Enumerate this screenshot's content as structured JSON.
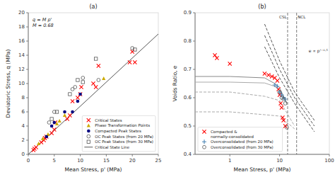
{
  "chart_data": [
    {
      "type": "scatter",
      "title": "(a)",
      "xlabel": "Mean Stress, p' (MPa)",
      "ylabel": "Deviatoric Stress, q (MPa)",
      "xlim": [
        0,
        25
      ],
      "ylim": [
        0,
        20
      ],
      "xticks": [
        0,
        5,
        10,
        15,
        20,
        25
      ],
      "yticks": [
        0,
        2,
        4,
        6,
        8,
        10,
        12,
        14,
        16,
        18,
        20
      ],
      "grid": false,
      "legend": "lower right",
      "annotation": "q = M p'\nM = 0.68",
      "series": [
        {
          "name": "Critical States",
          "type": "scatter",
          "color": "red",
          "marker": "x",
          "x": [
            1.0,
            1.2,
            1.5,
            2.5,
            3.0,
            3.2,
            3.5,
            4.5,
            5.0,
            5.2,
            7.5,
            8.0,
            8.5,
            9.5,
            10.0,
            10.2,
            12.5,
            13.0,
            13.5,
            19.5,
            20.0,
            20.5
          ],
          "values": [
            0.6,
            0.8,
            1.0,
            1.7,
            2.0,
            2.3,
            2.5,
            3.0,
            3.5,
            4.5,
            5.0,
            5.5,
            7.5,
            8.0,
            8.5,
            9.5,
            10.0,
            9.5,
            12.5,
            13.0,
            14.5,
            13.0
          ]
        },
        {
          "name": "Phase Transformation Points",
          "type": "scatter",
          "color": "#ccaa00",
          "marker": "triangle",
          "x": [
            2.0,
            2.8,
            3.8,
            5.5,
            6.0,
            7.0,
            14.5
          ],
          "values": [
            1.5,
            2.2,
            2.8,
            4.3,
            4.7,
            5.5,
            10.7
          ]
        },
        {
          "name": "Compacted Peak States",
          "type": "scatter",
          "color": "navy",
          "marker": "circle",
          "x": [
            3.5,
            4.5,
            5.0,
            7.0,
            8.5,
            9.5,
            10.0
          ],
          "values": [
            2.5,
            4.0,
            4.5,
            6.0,
            6.0,
            7.5,
            8.5
          ]
        },
        {
          "name": "OC Peak States (from 20 MPa)",
          "type": "scatter",
          "color": "#555555",
          "marker": "open-circle",
          "x": [
            4.0,
            5.0,
            8.5,
            9.0,
            10.5,
            13.5,
            20.0
          ],
          "values": [
            4.5,
            6.0,
            9.2,
            9.5,
            10.8,
            10.5,
            15.0
          ]
        },
        {
          "name": "OC Peak States (from 30 MPa)",
          "type": "scatter",
          "color": "#555555",
          "marker": "open-square",
          "x": [
            4.5,
            5.5,
            8.0,
            9.5,
            10.5,
            13.0,
            20.5
          ],
          "values": [
            5.0,
            6.0,
            8.5,
            10.5,
            10.2,
            13.5,
            14.8
          ]
        },
        {
          "name": "Critical State Line",
          "type": "line",
          "color": "#555555",
          "line_style": "solid",
          "x": [
            0,
            25
          ],
          "values": [
            0,
            17
          ]
        }
      ]
    },
    {
      "type": "scatter",
      "title": "(b)",
      "xlabel": "Mean Stress, p' (MPa)",
      "ylabel": "Voids Ratio, e",
      "log": "x",
      "xlim": [
        0.2,
        100
      ],
      "ylim": [
        0.4,
        0.9
      ],
      "xticks": [
        1,
        10,
        100
      ],
      "yticks": [
        0.4,
        0.5,
        0.6,
        0.7,
        0.8,
        0.9
      ],
      "grid": false,
      "legend": "lower left",
      "annotation": "e ∝ p'⁻⁰·⁵",
      "vlines": [
        {
          "x": 14.5,
          "text": "CSL"
        },
        {
          "x": 22.0,
          "text": "NCL"
        }
      ],
      "series": [
        {
          "type": "line",
          "color": "#555555",
          "line_style": "dashed",
          "x": [
            5.0,
            10.0,
            20.0,
            50.0
          ],
          "values": [
            0.78,
            0.67,
            0.58,
            0.48
          ]
        },
        {
          "type": "line",
          "color": "#555555",
          "line_style": "dashed",
          "x": [
            5.0,
            10.0,
            20.0,
            50.0
          ],
          "values": [
            0.82,
            0.7,
            0.6,
            0.5
          ]
        },
        {
          "type": "line",
          "color": "#555555",
          "line_style": "dashed",
          "x": [
            5.0,
            10.0,
            20.0,
            50.0
          ],
          "values": [
            0.86,
            0.73,
            0.62,
            0.52
          ]
        },
        {
          "type": "line",
          "color": "#888888",
          "line_style": "solid",
          "x": [
            0.2,
            1.0,
            5.0,
            8.0,
            10.0,
            12.0,
            14.0
          ],
          "values": [
            0.675,
            0.675,
            0.67,
            0.65,
            0.635,
            0.605,
            0.582
          ]
        },
        {
          "type": "line",
          "color": "#aaaaaa",
          "line_style": "solid",
          "x": [
            0.2,
            1.0,
            5.0,
            8.0,
            10.0,
            12.0,
            14.0
          ],
          "values": [
            0.655,
            0.655,
            0.652,
            0.64,
            0.625,
            0.6,
            0.578
          ]
        },
        {
          "type": "line",
          "color": "#aaaaaa",
          "line_style": "dashed",
          "x": [
            0.2,
            1.0,
            5.0,
            10.0,
            20.0
          ],
          "values": [
            0.62,
            0.62,
            0.605,
            0.59,
            0.5
          ]
        },
        {
          "type": "line",
          "color": "#aaaaaa",
          "line_style": "dashed",
          "x": [
            0.2,
            1.0,
            5.0,
            10.0,
            20.0
          ],
          "values": [
            0.55,
            0.55,
            0.54,
            0.535,
            0.49
          ]
        },
        {
          "name": "Compacted &\nnormally-consolidated",
          "type": "scatter",
          "color": "red",
          "marker": "x",
          "x": [
            0.5,
            0.55,
            1.0,
            5.0,
            6.0,
            7.0,
            8.0,
            9.0,
            9.5,
            10.0,
            10.5,
            11.0,
            11.5,
            12.0,
            13.0
          ],
          "values": [
            0.75,
            0.74,
            0.72,
            0.685,
            0.68,
            0.675,
            0.67,
            0.66,
            0.63,
            0.61,
            0.58,
            0.565,
            0.53,
            0.52,
            0.5
          ]
        },
        {
          "name": "Overconsolidated (from 20 MPa)",
          "type": "scatter",
          "color": "steelblue",
          "marker": "plus",
          "x": [
            8.0,
            9.0,
            10.0,
            11.0,
            12.0,
            13.0
          ],
          "values": [
            0.645,
            0.64,
            0.62,
            0.61,
            0.6,
            0.595
          ]
        },
        {
          "name": "Overconsolidated (from 30 MPa)",
          "type": "scatter",
          "color": "#555555",
          "marker": "open-circle",
          "x": [
            10.0,
            11.0,
            12.0,
            13.0,
            14.0
          ],
          "values": [
            0.62,
            0.6,
            0.595,
            0.58,
            0.495
          ]
        }
      ]
    }
  ]
}
